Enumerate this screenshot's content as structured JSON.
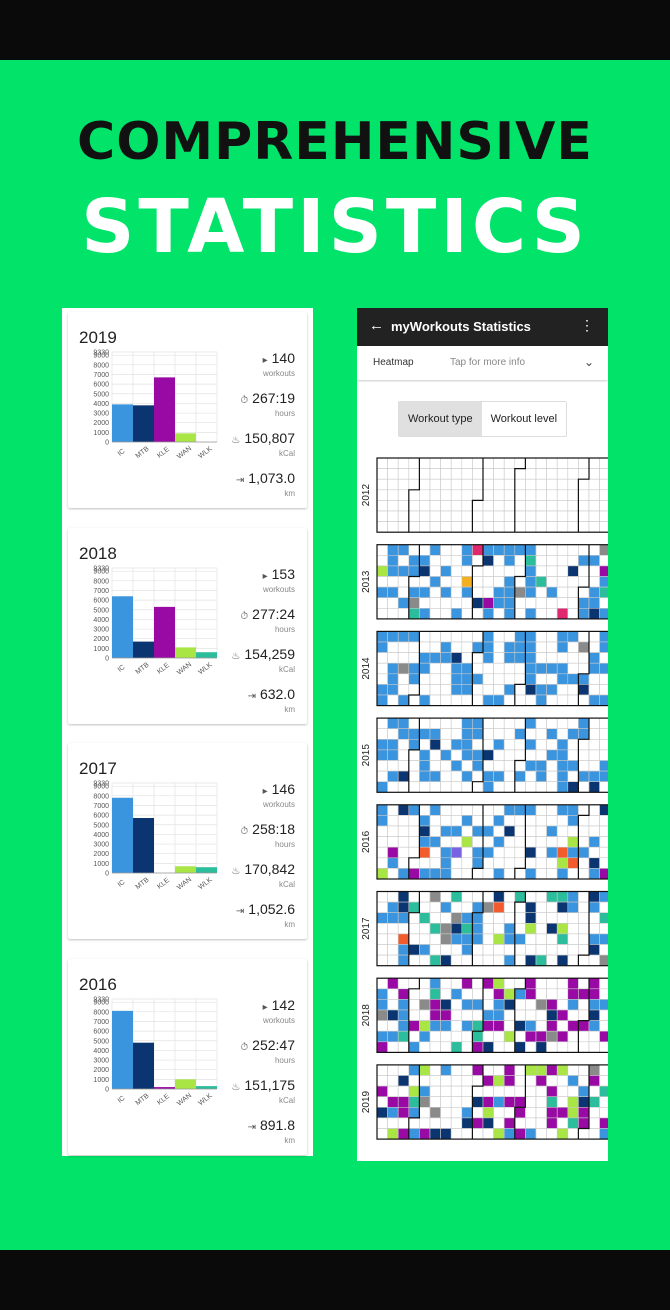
{
  "headline": {
    "line1": "COMPREHENSIVE",
    "line2": "STATISTICS"
  },
  "chart_categories": [
    "IC",
    "MTB",
    "KLE",
    "WAN",
    "WLK"
  ],
  "chart_colors": [
    "#3b95de",
    "#0b3570",
    "#990aa5",
    "#a9e545",
    "#2bbd9c"
  ],
  "y_ticks": [
    "0",
    "1000",
    "2000",
    "3000",
    "4000",
    "5000",
    "6000",
    "7000",
    "8000",
    "9000",
    "9330"
  ],
  "stat_icons": [
    "▸",
    "⏱",
    "♨",
    "⇥"
  ],
  "stat_units": [
    "workouts",
    "hours",
    "kCal",
    "km"
  ],
  "chart_data": [
    {
      "type": "bar",
      "title": "2019",
      "categories": [
        "IC",
        "MTB",
        "KLE",
        "WAN",
        "WLK"
      ],
      "values": [
        3900,
        3800,
        6700,
        900,
        0
      ],
      "ylim": [
        0,
        9330
      ],
      "grid": true,
      "stats": {
        "workouts": "140",
        "hours": "267:19",
        "kcal": "150,807",
        "km": "1,073.0"
      }
    },
    {
      "type": "bar",
      "title": "2018",
      "categories": [
        "IC",
        "MTB",
        "KLE",
        "WAN",
        "WLK"
      ],
      "values": [
        6400,
        1700,
        5300,
        1100,
        600
      ],
      "ylim": [
        0,
        9330
      ],
      "grid": true,
      "stats": {
        "workouts": "153",
        "hours": "277:24",
        "kcal": "154,259",
        "km": "632.0"
      }
    },
    {
      "type": "bar",
      "title": "2017",
      "categories": [
        "IC",
        "MTB",
        "KLE",
        "WAN",
        "WLK"
      ],
      "values": [
        7800,
        5700,
        0,
        700,
        600
      ],
      "ylim": [
        0,
        9330
      ],
      "grid": true,
      "stats": {
        "workouts": "146",
        "hours": "258:18",
        "kcal": "170,842",
        "km": "1,052.6"
      }
    },
    {
      "type": "bar",
      "title": "2016",
      "categories": [
        "IC",
        "MTB",
        "KLE",
        "WAN",
        "WLK"
      ],
      "values": [
        8100,
        4800,
        200,
        1000,
        300
      ],
      "ylim": [
        0,
        9330
      ],
      "grid": true,
      "stats": {
        "workouts": "142",
        "hours": "252:47",
        "kcal": "151,175",
        "km": "891.8"
      }
    }
  ],
  "phone": {
    "back_icon": "arrow-left-icon",
    "title": "myWorkouts Statistics",
    "menu_icon": "more-vert-icon",
    "view_label": "Heatmap",
    "view_hint": "Tap for more info",
    "toggle": [
      "Workout type",
      "Workout level"
    ],
    "heatmap_years": [
      "2012",
      "2013",
      "2014",
      "2015",
      "2016",
      "2017",
      "2018",
      "2019"
    ],
    "heatmap_palette": {
      "IC": "#3b95de",
      "MTB": "#0b3570",
      "KLE": "#990aa5",
      "WAN": "#a9e545",
      "WLK": "#2bbd9c",
      "other1": "#8a8a8a",
      "other2": "#f2b01e",
      "other3": "#e0286f",
      "other4": "#f25c2c",
      "other5": "#7a63e0"
    }
  }
}
